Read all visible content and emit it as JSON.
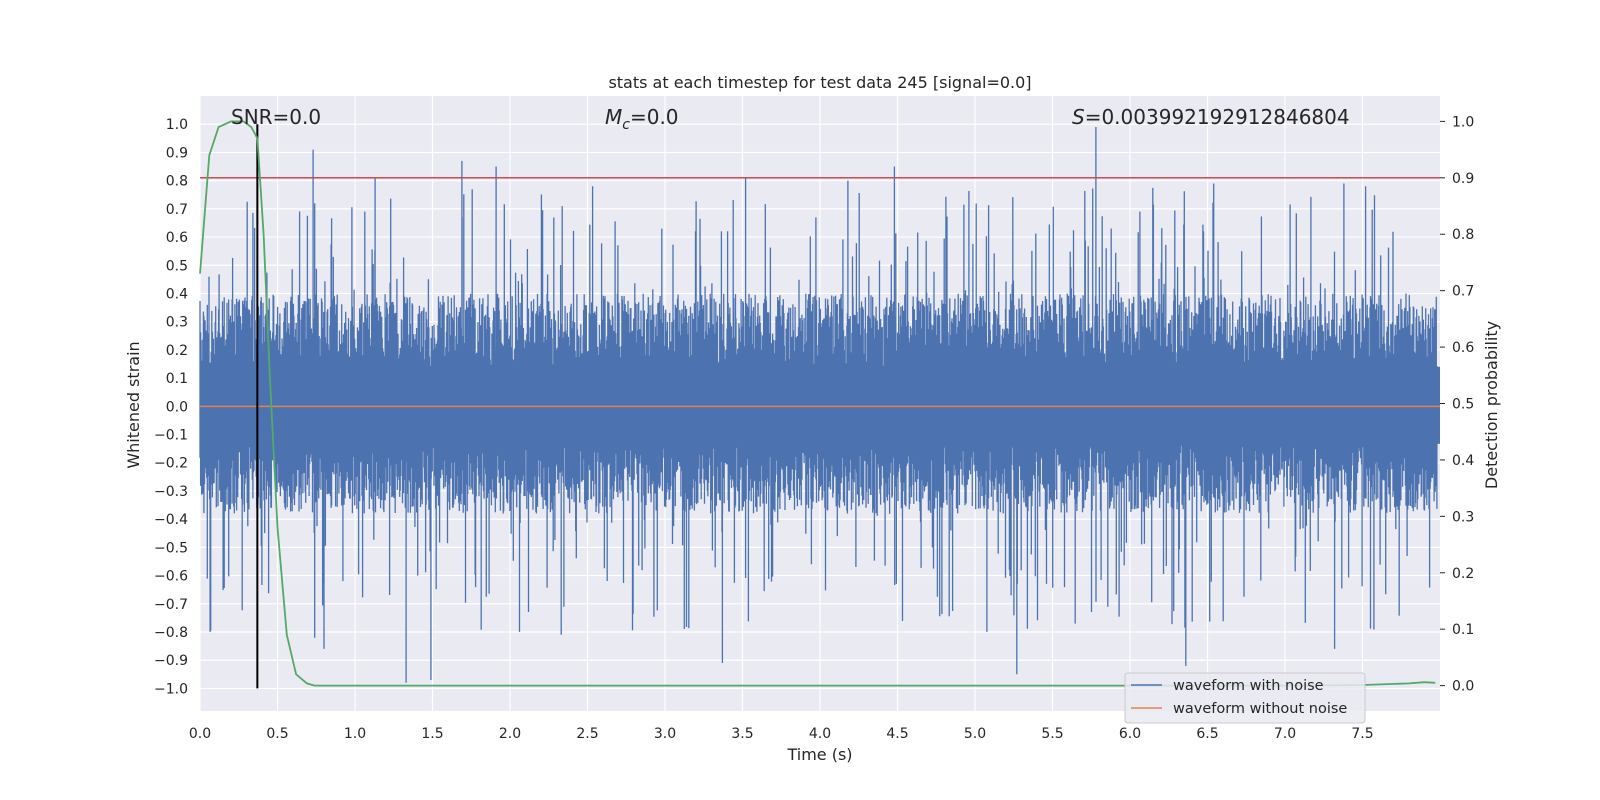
{
  "chart_data": {
    "type": "line",
    "title": "stats at each timestep for test data 245 [signal=0.0]",
    "xlabel": "Time (s)",
    "ylabel_left": "Whitened strain",
    "ylabel_right": "Detection probability",
    "xlim": [
      0.0,
      8.0
    ],
    "ylim_left": [
      -1.08,
      1.1
    ],
    "ylim_right": [
      -0.045,
      1.045
    ],
    "x_ticks": [
      0.0,
      0.5,
      1.0,
      1.5,
      2.0,
      2.5,
      3.0,
      3.5,
      4.0,
      4.5,
      5.0,
      5.5,
      6.0,
      6.5,
      7.0,
      7.5
    ],
    "x_tick_labels": [
      "0.0",
      "0.5",
      "1.0",
      "1.5",
      "2.0",
      "2.5",
      "3.0",
      "3.5",
      "4.0",
      "4.5",
      "5.0",
      "5.5",
      "6.0",
      "6.5",
      "7.0",
      "7.5"
    ],
    "y_left_ticks": [
      -1.0,
      -0.9,
      -0.8,
      -0.7,
      -0.6,
      -0.5,
      -0.4,
      -0.3,
      -0.2,
      -0.1,
      0.0,
      0.1,
      0.2,
      0.3,
      0.4,
      0.5,
      0.6,
      0.7,
      0.8,
      0.9,
      1.0
    ],
    "y_left_tick_labels": [
      "−1.0",
      "−0.9",
      "−0.8",
      "−0.7",
      "−0.6",
      "−0.5",
      "−0.4",
      "−0.3",
      "−0.2",
      "−0.1",
      "0.0",
      "0.1",
      "0.2",
      "0.3",
      "0.4",
      "0.5",
      "0.6",
      "0.7",
      "0.8",
      "0.9",
      "1.0"
    ],
    "y_right_ticks": [
      0.0,
      0.1,
      0.2,
      0.3,
      0.4,
      0.5,
      0.6,
      0.7,
      0.8,
      0.9,
      1.0
    ],
    "y_right_tick_labels": [
      "0.0",
      "0.1",
      "0.2",
      "0.3",
      "0.4",
      "0.5",
      "0.6",
      "0.7",
      "0.8",
      "0.9",
      "1.0"
    ],
    "annotations": {
      "snr": "SNR=0.0",
      "mc_symbol": "M",
      "mc_sub": "c",
      "mc_value": "=0.0",
      "s_symbol": "S",
      "s_value": "=0.003992192912846804"
    },
    "series": [
      {
        "name": "waveform with noise",
        "axis": "left",
        "color": "#4c72b0",
        "description": "dense noise trace, band roughly -0.38 to 0.40 with spikes reaching about 0.99 (t≈5.8) and -0.98 (t≈1.33)",
        "band_top": 0.4,
        "band_bottom": -0.38,
        "spikes": [
          {
            "t": 0.73,
            "v": 0.91
          },
          {
            "t": 1.13,
            "v": 0.81
          },
          {
            "t": 1.69,
            "v": 0.87
          },
          {
            "t": 1.91,
            "v": 0.85
          },
          {
            "t": 3.52,
            "v": 0.81
          },
          {
            "t": 4.18,
            "v": 0.8
          },
          {
            "t": 4.48,
            "v": 0.85
          },
          {
            "t": 5.78,
            "v": 0.99
          },
          {
            "t": 6.54,
            "v": 0.79
          },
          {
            "t": 7.38,
            "v": 0.79
          },
          {
            "t": 7.52,
            "v": 0.78
          },
          {
            "t": 1.33,
            "v": -0.98
          },
          {
            "t": 1.49,
            "v": -0.97
          },
          {
            "t": 3.37,
            "v": -0.91
          },
          {
            "t": 5.27,
            "v": -0.95
          },
          {
            "t": 6.36,
            "v": -0.92
          },
          {
            "t": 7.32,
            "v": -0.86
          },
          {
            "t": 0.8,
            "v": -0.86
          },
          {
            "t": 0.74,
            "v": -0.82
          },
          {
            "t": 2.33,
            "v": -0.81
          }
        ]
      },
      {
        "name": "waveform without noise",
        "axis": "left",
        "color": "#dd8452",
        "x": [
          0.0,
          8.0
        ],
        "y": [
          0.0,
          0.0
        ]
      },
      {
        "name": "detection probability",
        "axis": "right",
        "color": "#55a868",
        "x": [
          0.0,
          0.06,
          0.12,
          0.2,
          0.28,
          0.33,
          0.37,
          0.41,
          0.45,
          0.5,
          0.56,
          0.62,
          0.69,
          0.74,
          0.8,
          1.0,
          2.0,
          3.0,
          4.0,
          5.0,
          6.0,
          7.0,
          7.5,
          7.8,
          7.9,
          7.97
        ],
        "y": [
          0.73,
          0.94,
          0.99,
          1.0,
          1.0,
          0.99,
          0.97,
          0.8,
          0.55,
          0.28,
          0.09,
          0.02,
          0.004,
          0.0,
          0.0,
          0.0,
          0.0,
          0.0,
          0.0,
          0.0,
          0.0,
          0.0,
          0.001,
          0.004,
          0.006,
          0.005
        ]
      }
    ],
    "hlines": [
      {
        "name": "threshold",
        "axis": "right",
        "y": 0.9,
        "color": "#c44e52"
      }
    ],
    "vlines": [
      {
        "name": "marker",
        "x": 0.37,
        "y_from": -1.0,
        "y_to": 1.0,
        "color": "#000000"
      }
    ],
    "legend": {
      "location": "lower-right",
      "entries": [
        {
          "label": "waveform with noise",
          "color": "#4c72b0"
        },
        {
          "label": "waveform without noise",
          "color": "#dd8452"
        }
      ]
    },
    "style": {
      "plot_bg": "#eaeaf2",
      "grid_color": "#ffffff",
      "grid": true
    }
  }
}
